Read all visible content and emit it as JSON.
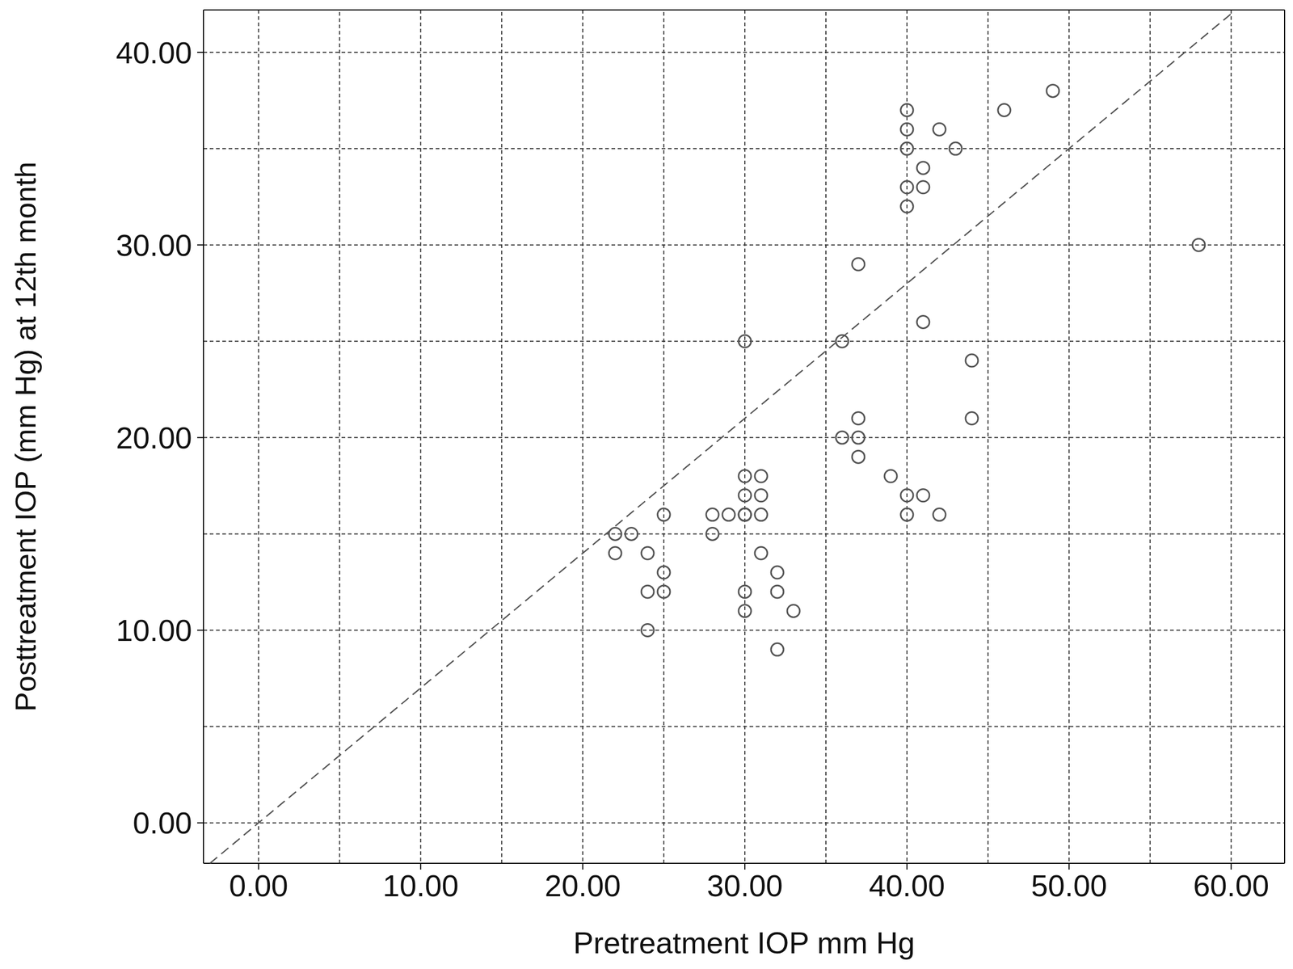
{
  "chart_data": {
    "type": "scatter",
    "x_label": "Pretreatment IOP mm Hg",
    "y_label": "Posttreatment IOP (mm Hg) at 12th month",
    "xlim": [
      -3.4,
      63.3
    ],
    "ylim": [
      -2.1,
      42.2
    ],
    "xticks": [
      {
        "value": 0,
        "label": "0.00"
      },
      {
        "value": 10,
        "label": "10.00"
      },
      {
        "value": 20,
        "label": "20.00"
      },
      {
        "value": 30,
        "label": "30.00"
      },
      {
        "value": 40,
        "label": "40.00"
      },
      {
        "value": 50,
        "label": "50.00"
      },
      {
        "value": 60,
        "label": "60.00"
      }
    ],
    "yticks": [
      {
        "value": 0,
        "label": "0.00"
      },
      {
        "value": 10,
        "label": "10.00"
      },
      {
        "value": 20,
        "label": "20.00"
      },
      {
        "value": 30,
        "label": "30.00"
      },
      {
        "value": 40,
        "label": "40.00"
      }
    ],
    "grid": true,
    "series": [
      {
        "type": "scatter",
        "marker": "circle",
        "color": "#555555",
        "x": [
          22,
          22,
          23,
          24,
          24,
          24,
          25,
          25,
          25,
          28,
          28,
          29,
          30,
          30,
          30,
          30,
          30,
          30,
          30,
          31,
          31,
          31,
          31,
          32,
          32,
          32,
          33,
          36,
          36,
          37,
          37,
          37,
          37,
          39,
          40,
          40,
          40,
          40,
          40,
          40,
          40,
          41,
          41,
          41,
          41,
          42,
          42,
          43,
          44,
          44,
          46,
          49,
          58
        ],
        "values": [
          15,
          14,
          15,
          14,
          12,
          10,
          16,
          13,
          12,
          16,
          15,
          16,
          25,
          18,
          17,
          16,
          16,
          12,
          11,
          18,
          17,
          16,
          14,
          13,
          12,
          9,
          11,
          25,
          20,
          29,
          21,
          20,
          19,
          18,
          37,
          36,
          35,
          33,
          32,
          17,
          16,
          34,
          33,
          26,
          17,
          36,
          16,
          35,
          24,
          21,
          37,
          38,
          30
        ]
      },
      {
        "type": "line",
        "line_style": "dashed",
        "color": "#555555",
        "x": [
          -3,
          60
        ],
        "values": [
          -2.1,
          42
        ]
      }
    ]
  }
}
